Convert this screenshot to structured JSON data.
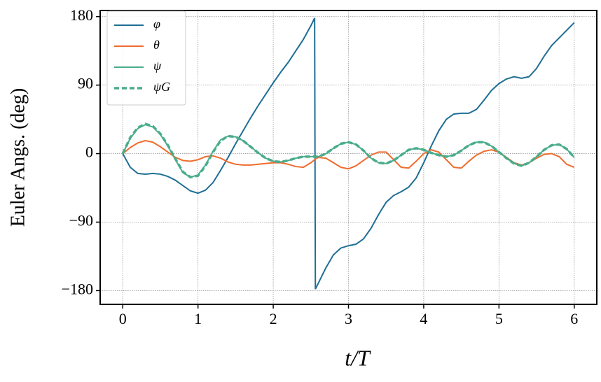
{
  "chart_data": {
    "type": "line",
    "x_label": "t/T",
    "y_label": "Euler Angs. (deg)",
    "x": [
      0,
      0.1,
      0.2,
      0.3,
      0.4,
      0.5,
      0.6,
      0.7,
      0.8,
      0.9,
      1.0,
      1.1,
      1.2,
      1.3,
      1.4,
      1.5,
      1.6,
      1.7,
      1.8,
      1.9,
      2.0,
      2.1,
      2.2,
      2.3,
      2.4,
      2.5,
      2.55,
      2.56,
      2.6,
      2.7,
      2.8,
      2.9,
      3.0,
      3.1,
      3.2,
      3.3,
      3.4,
      3.5,
      3.6,
      3.7,
      3.8,
      3.9,
      4.0,
      4.1,
      4.2,
      4.3,
      4.4,
      4.5,
      4.6,
      4.7,
      4.8,
      4.9,
      5.0,
      5.1,
      5.2,
      5.3,
      5.4,
      5.5,
      5.6,
      5.7,
      5.8,
      5.9,
      6.0
    ],
    "series": [
      {
        "name": "φ",
        "color": "#1f6e95",
        "dashed": false,
        "values": [
          0,
          -18,
          -26,
          -27,
          -26,
          -27,
          -30,
          -35,
          -42,
          -49,
          -52,
          -48,
          -38,
          -22,
          -5,
          13,
          30,
          47,
          63,
          78,
          93,
          107,
          120,
          135,
          150,
          168,
          178,
          -178,
          -170,
          -150,
          -133,
          -124,
          -121,
          -119,
          -112,
          -98,
          -80,
          -64,
          -55,
          -50,
          -44,
          -32,
          -12,
          10,
          30,
          45,
          52,
          53,
          53,
          58,
          70,
          83,
          92,
          98,
          101,
          99,
          101,
          112,
          128,
          142,
          152,
          162,
          172
        ]
      },
      {
        "name": "θ",
        "color": "#ef6c2e",
        "dashed": false,
        "values": [
          0,
          8,
          14,
          17,
          15,
          9,
          2,
          -5,
          -9,
          -10,
          -8,
          -4,
          -3,
          -6,
          -11,
          -14,
          -15,
          -15,
          -14,
          -13,
          -12,
          -12,
          -14,
          -17,
          -18,
          -12,
          -8,
          -7,
          -5,
          -6,
          -12,
          -18,
          -20,
          -16,
          -9,
          -2,
          2,
          2,
          -8,
          -18,
          -19,
          -10,
          0,
          5,
          2,
          -8,
          -18,
          -19,
          -10,
          -2,
          3,
          5,
          2,
          -5,
          -12,
          -15,
          -12,
          -6,
          -1,
          0,
          -4,
          -14,
          -18
        ]
      },
      {
        "name": "ψ",
        "color": "#4aac8c",
        "dashed": false,
        "values": [
          0,
          20,
          33,
          38,
          35,
          25,
          10,
          -8,
          -25,
          -31,
          -28,
          -15,
          3,
          18,
          23,
          22,
          17,
          9,
          1,
          -6,
          -10,
          -11,
          -9,
          -6,
          -4,
          -4,
          -4,
          -4,
          -4,
          0,
          7,
          13,
          15,
          12,
          4,
          -6,
          -12,
          -13,
          -9,
          -2,
          5,
          7,
          5,
          1,
          -2,
          -4,
          -2,
          4,
          11,
          15,
          15,
          10,
          2,
          -6,
          -13,
          -16,
          -12,
          -4,
          5,
          11,
          12,
          6,
          -5
        ]
      },
      {
        "name": "ψG",
        "color": "#4aac8c",
        "dashed": true,
        "values": [
          0,
          21,
          34,
          39,
          36,
          26,
          11,
          -7,
          -24,
          -31,
          -29,
          -16,
          2,
          17,
          23,
          22,
          17,
          9,
          1,
          -6,
          -10,
          -11,
          -9,
          -6,
          -4,
          -4,
          -4,
          -4,
          -4,
          0,
          7,
          13,
          15,
          12,
          4,
          -6,
          -12,
          -13,
          -9,
          -2,
          5,
          7,
          5,
          1,
          -2,
          -4,
          -2,
          4,
          11,
          15,
          15,
          10,
          2,
          -6,
          -13,
          -16,
          -12,
          -4,
          5,
          11,
          12,
          6,
          -5
        ]
      }
    ],
    "xlim": [
      -0.3,
      6.3
    ],
    "ylim": [
      -198,
      188
    ],
    "xticks": [
      0,
      1,
      2,
      3,
      4,
      5,
      6
    ],
    "yticks": [
      180,
      90,
      0,
      {
        "value": -90,
        "label": "−90"
      },
      {
        "value": -180,
        "label": "−180"
      }
    ],
    "grid": true,
    "legend": "upper left"
  }
}
